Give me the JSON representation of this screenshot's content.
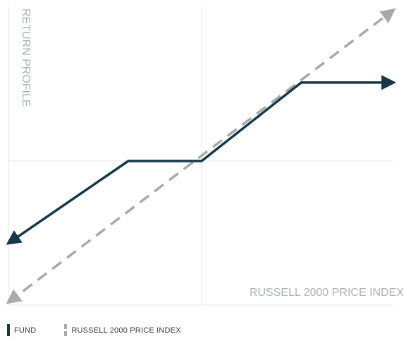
{
  "chart_data": {
    "type": "line",
    "title": "",
    "ylabel": "RETURN PROFILE",
    "xlabel": "RUSSELL 2000 PRICE INDEX",
    "xlim": [
      -1,
      1
    ],
    "ylim": [
      -1,
      1
    ],
    "series": [
      {
        "name": "FUND",
        "style": "solid",
        "color": "#15384a",
        "x": [
          -1,
          -0.38,
          0,
          0.52,
          1
        ],
        "y": [
          -0.57,
          0,
          0,
          0.51,
          0.51
        ]
      },
      {
        "name": "RUSSELL 2000 PRICE INDEX",
        "style": "dashed",
        "color": "#a9a9a9",
        "x": [
          -1,
          1
        ],
        "y": [
          -0.98,
          0.98
        ]
      }
    ],
    "grid": false
  },
  "legend": {
    "fund_label": "FUND",
    "index_label": "RUSSELL 2000 PRICE INDEX"
  },
  "colors": {
    "fund": "#15384a",
    "index": "#a9a9a9",
    "axis": "#e1e6ea",
    "axis_label": "#a8b2ba"
  }
}
